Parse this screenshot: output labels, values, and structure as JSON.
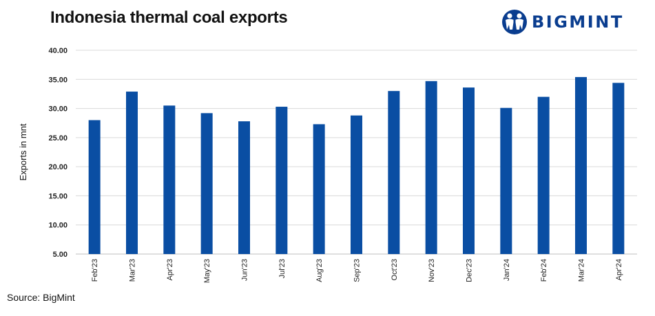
{
  "header": {
    "title": "Indonesia thermal coal exports",
    "logo_text": "BIGMINT",
    "logo_color": "#0a3d8f"
  },
  "footer": {
    "source": "Source: BigMint"
  },
  "colors": {
    "bar": "#0a4ea3",
    "grid": "#d9d9d9",
    "axis": "#bfbfbf"
  },
  "chart_data": {
    "type": "bar",
    "title": "Indonesia thermal coal exports",
    "xlabel": "",
    "ylabel": "Exports in mnt",
    "categories": [
      "Feb'23",
      "Mar'23",
      "Apr'23",
      "May'23",
      "Jun'23",
      "Jul'23",
      "Aug'23",
      "Sep'23",
      "Oct'23",
      "Nov'23",
      "Dec'23",
      "Jan'24",
      "Feb'24",
      "Mar'24",
      "Apr'24"
    ],
    "values": [
      28.0,
      32.9,
      30.5,
      29.2,
      27.8,
      30.3,
      27.3,
      28.8,
      33.0,
      34.7,
      33.6,
      30.1,
      32.0,
      35.4,
      34.4
    ],
    "ylim": [
      5,
      40
    ],
    "yticks": [
      "5.00",
      "10.00",
      "15.00",
      "20.00",
      "25.00",
      "30.00",
      "35.00",
      "40.00"
    ],
    "grid": true,
    "legend": "none"
  }
}
